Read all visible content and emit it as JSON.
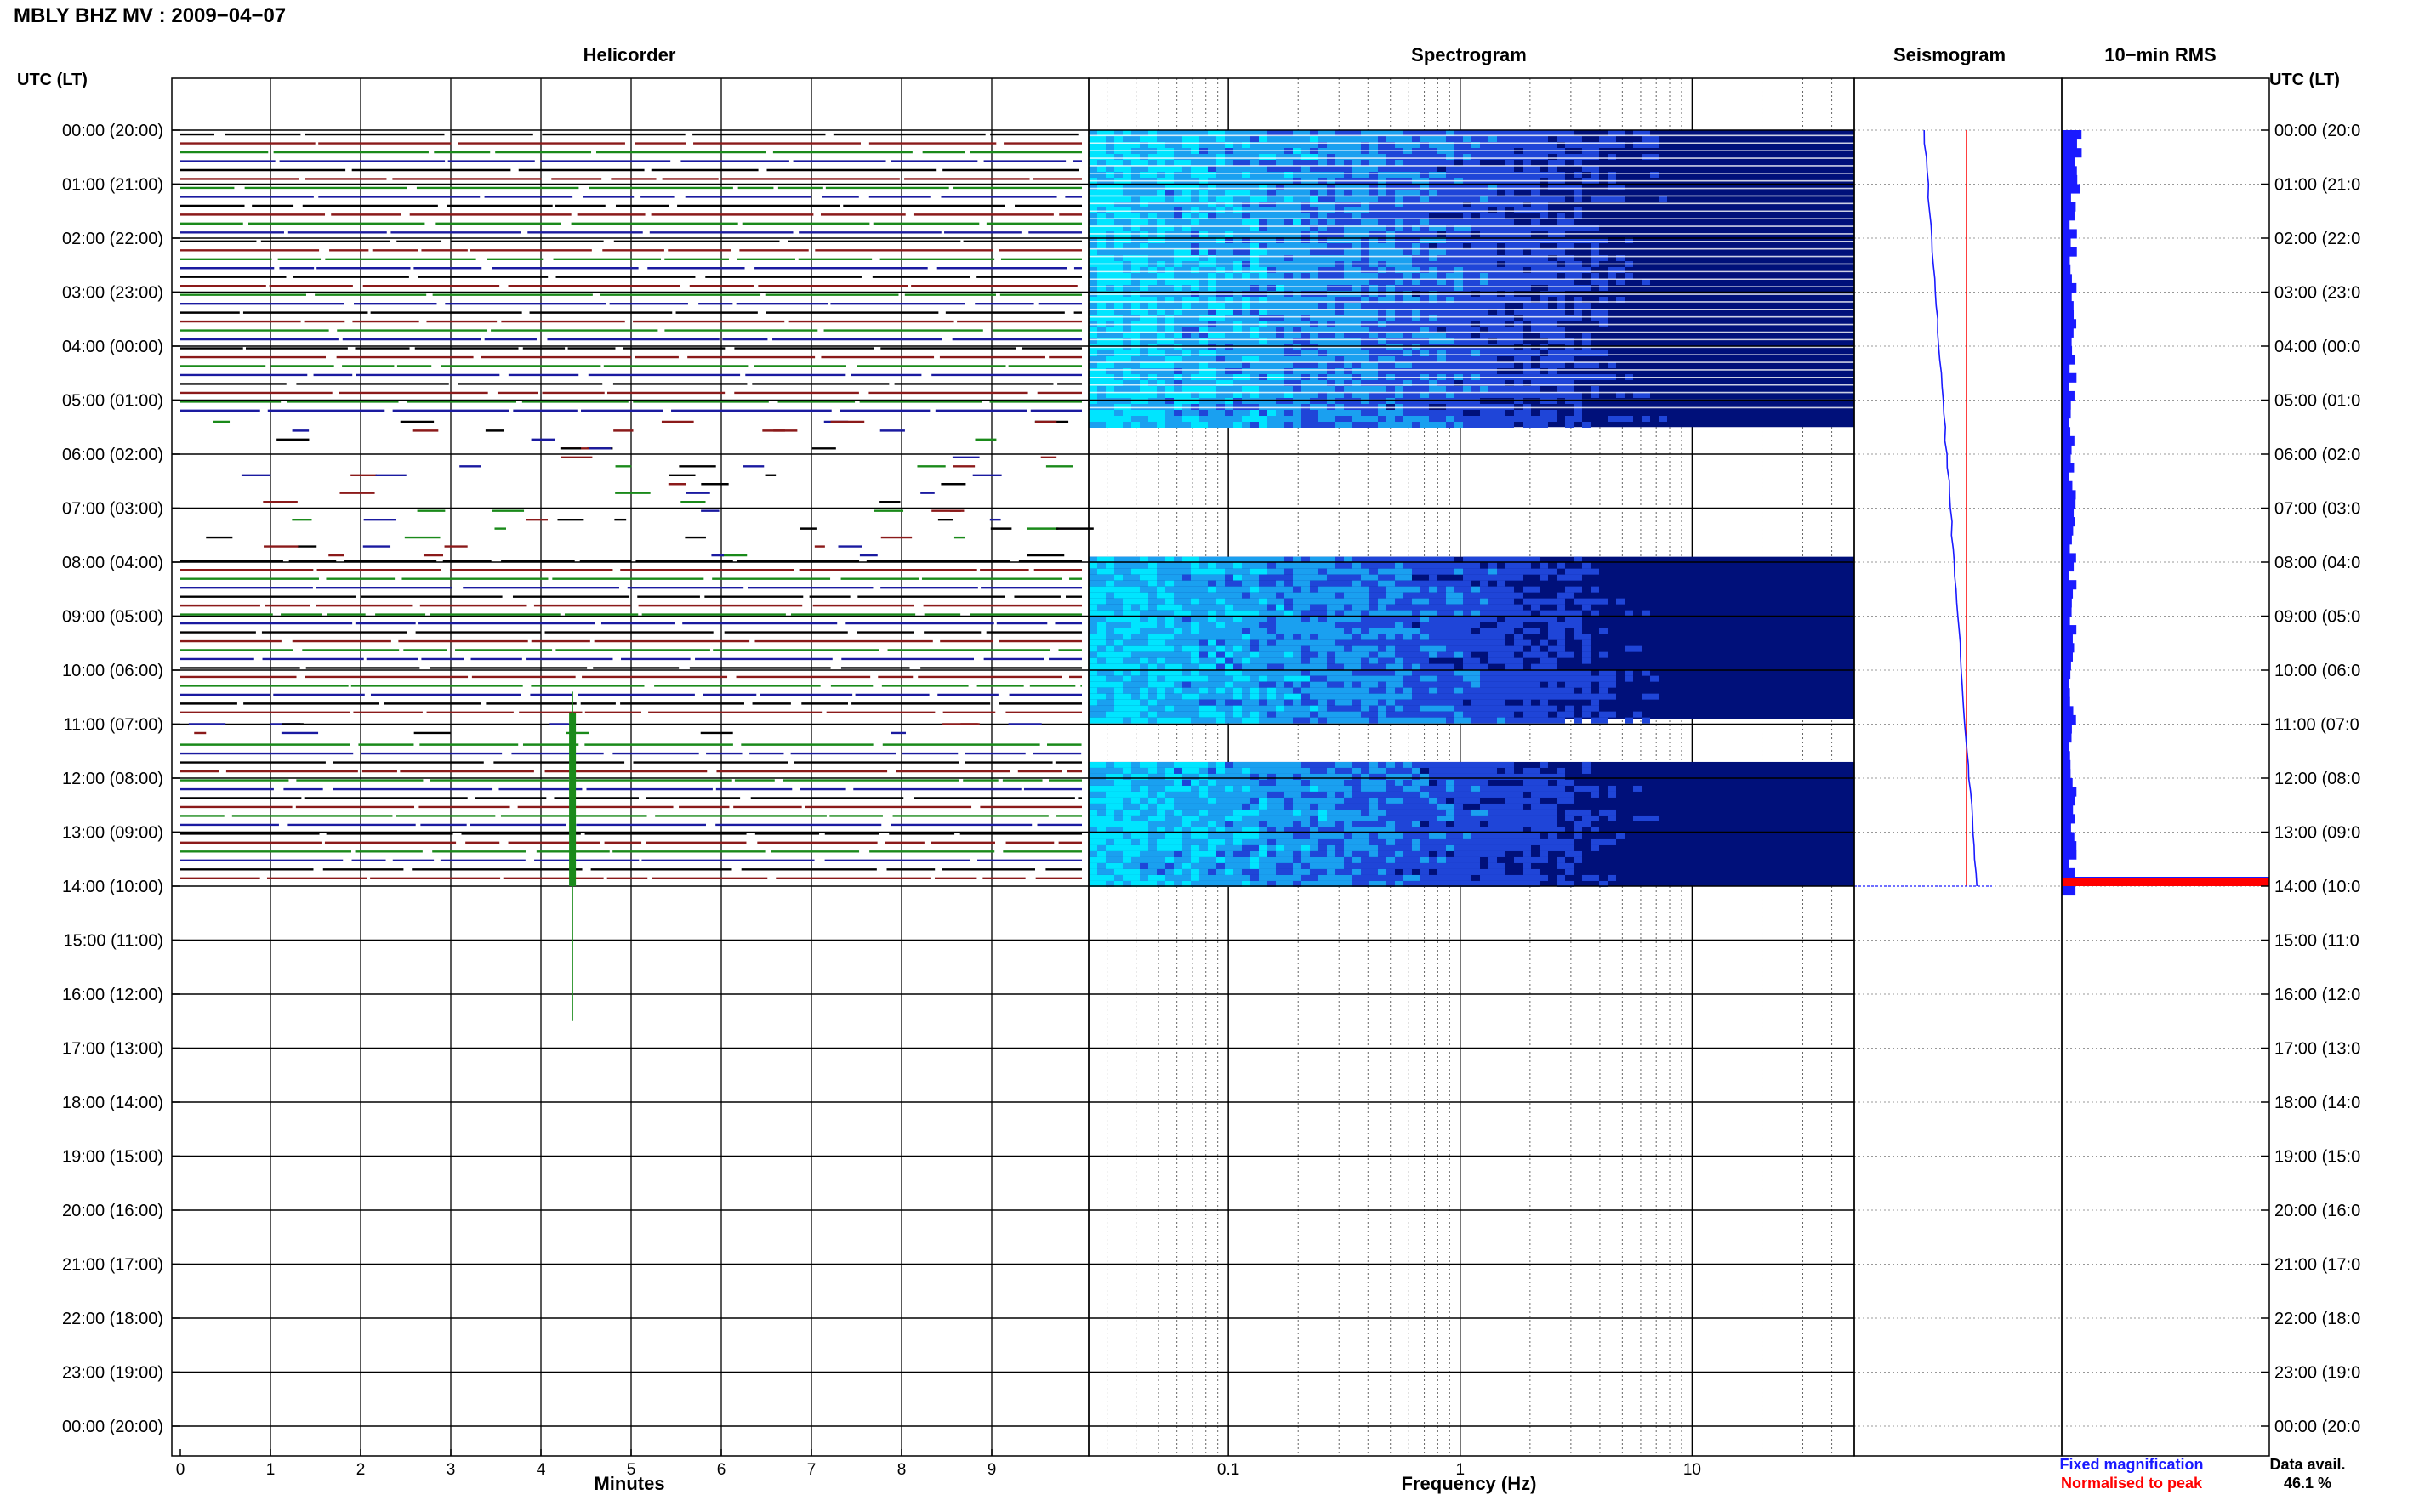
{
  "figure": {
    "title": "MBLY BHZ MV : 2009−04−07",
    "left_axis_label": "UTC (LT)",
    "right_axis_label": "UTC (LT)",
    "row_labels": [
      "00:00 (20:00)",
      "01:00 (21:00)",
      "02:00 (22:00)",
      "03:00 (23:00)",
      "04:00 (00:00)",
      "05:00 (01:00)",
      "06:00 (02:00)",
      "07:00 (03:00)",
      "08:00 (04:00)",
      "09:00 (05:00)",
      "10:00 (06:00)",
      "11:00 (07:00)",
      "12:00 (08:00)",
      "13:00 (09:00)",
      "14:00 (10:00)",
      "15:00 (11:00)",
      "16:00 (12:00)",
      "17:00 (13:00)",
      "18:00 (14:00)",
      "19:00 (15:00)",
      "20:00 (16:00)",
      "21:00 (17:00)",
      "22:00 (18:00)",
      "23:00 (19:00)",
      "00:00 (20:00)"
    ],
    "colors": {
      "black": "#000000",
      "red": "#8b1a1a",
      "green": "#1a8a1a",
      "blue": "#1a1aa0",
      "spec_dark": "#00107a",
      "spec_mid": "#1f45d8",
      "spec_light": "#00e5ff",
      "seis_blue": "#1a1aff",
      "norm_red": "#ff0000"
    }
  },
  "chart_data": [
    {
      "type": "line",
      "title": "Helicorder",
      "xlabel": "Minutes",
      "xlim": [
        0,
        10
      ],
      "x_ticks": [
        "0",
        "1",
        "2",
        "3",
        "4",
        "5",
        "6",
        "7",
        "8",
        "9"
      ],
      "data_rows_hours": [
        [
          0,
          5.3
        ],
        [
          7.9,
          10.9
        ],
        [
          11.3,
          14
        ]
      ],
      "sparse_rows_hours": [
        [
          5.3,
          7.9
        ],
        [
          10.9,
          11.3
        ]
      ],
      "event": {
        "minute": 4.35,
        "hour_start": 11.0,
        "hour_end": 16.5
      }
    },
    {
      "type": "heatmap",
      "title": "Spectrogram",
      "xlabel": "Frequency (Hz)",
      "x_scale": "log",
      "xlim": [
        0.025,
        50
      ],
      "x_ticks": [
        "0.1",
        "1",
        "10"
      ],
      "blocks_hours": [
        [
          0,
          5.5
        ],
        [
          7.9,
          10.9
        ],
        [
          11.7,
          14
        ]
      ],
      "unit_note": ""
    },
    {
      "type": "line",
      "title": "Seismogram",
      "legend": [
        "Fixed magnification",
        "Normalised to peak"
      ],
      "fixed_trace_hours": [
        0,
        14
      ],
      "normalised_line_x_fraction": 0.5
    },
    {
      "type": "bar",
      "title": "10−min RMS",
      "data_avail_label": "Data avail.",
      "data_avail_value": "46.1 %",
      "spike_hour": 14.0
    }
  ]
}
